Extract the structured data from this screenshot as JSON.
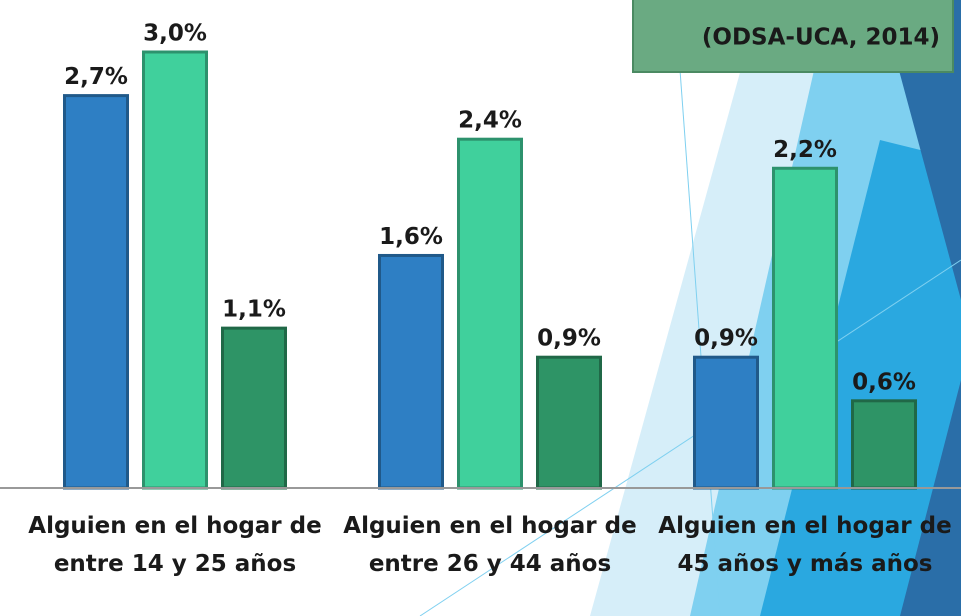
{
  "chart_data": {
    "type": "bar",
    "annotation": "(ODSA-UCA, 2014)",
    "categories": [
      "Alguien en el hogar de entre 14 y 25 años",
      "Alguien en el hogar de entre 26 y 44 años",
      "Alguien en el hogar de 45 años y más años"
    ],
    "series": [
      {
        "color": "#2e7fc4",
        "values": [
          2.7,
          1.6,
          0.9
        ],
        "value_labels": [
          "2,7%",
          "1,6%",
          "0,9%"
        ]
      },
      {
        "color": "#40d09c",
        "values": [
          3.0,
          2.4,
          2.2
        ],
        "value_labels": [
          "3,0%",
          "2,4%",
          "2,2%"
        ]
      },
      {
        "color": "#2e9466",
        "values": [
          1.1,
          0.9,
          0.6
        ],
        "value_labels": [
          "1,1%",
          "0,9%",
          "0,6%"
        ]
      }
    ]
  }
}
